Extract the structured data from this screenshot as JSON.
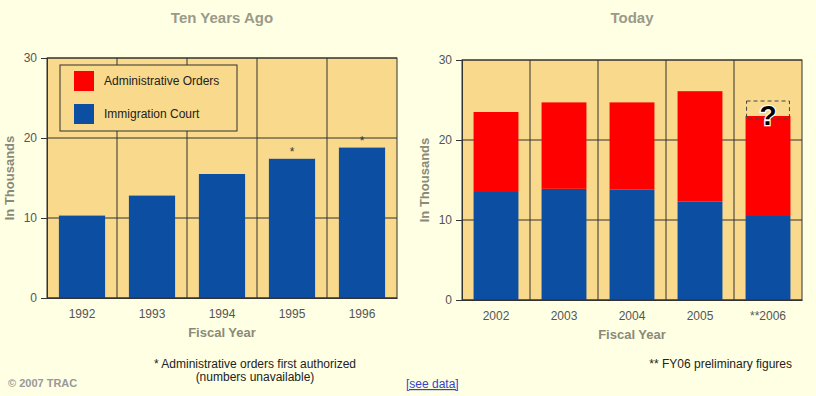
{
  "chart_data": [
    {
      "type": "bar",
      "title": "Ten Years Ago",
      "x_label": "Fiscal Year",
      "y_label": "In Thousands",
      "categories": [
        "1992",
        "1993",
        "1994",
        "1995",
        "1996"
      ],
      "series": [
        {
          "name": "Administrative Orders",
          "color": "#ff0000",
          "values": [
            null,
            null,
            null,
            null,
            null
          ]
        },
        {
          "name": "Immigration Court",
          "color": "#0b4ea2",
          "values": [
            10.3,
            12.8,
            15.5,
            17.4,
            18.8
          ]
        }
      ],
      "ylim": [
        0,
        30
      ],
      "yticks": [
        0,
        10,
        20,
        30
      ],
      "stacked": true,
      "grid": true,
      "legend": "top-left",
      "annotations": [
        {
          "category": "1995",
          "text": "*"
        },
        {
          "category": "1996",
          "text": "*"
        }
      ],
      "footnote": [
        "* Administrative orders first authorized",
        "(numbers unavailable)"
      ]
    },
    {
      "type": "bar",
      "title": "Today",
      "x_label": "Fiscal Year",
      "y_label": "In Thousands",
      "categories": [
        "2002",
        "2003",
        "2004",
        "2005",
        "**2006"
      ],
      "series": [
        {
          "name": "Administrative Orders",
          "color": "#ff0000",
          "values": [
            10.0,
            10.8,
            10.9,
            13.8,
            12.5
          ]
        },
        {
          "name": "Immigration Court",
          "color": "#0b4ea2",
          "values": [
            13.5,
            13.9,
            13.8,
            12.3,
            10.5
          ]
        }
      ],
      "ylim": [
        0,
        30
      ],
      "yticks": [
        0,
        10,
        20,
        30
      ],
      "stacked": true,
      "grid": true,
      "annotations": [
        {
          "category": "**2006",
          "text": "?"
        }
      ],
      "footnote": [
        "** FY06 preliminary figures"
      ]
    }
  ],
  "page": {
    "credit": "© 2007 TRAC",
    "link": "[see data]"
  }
}
